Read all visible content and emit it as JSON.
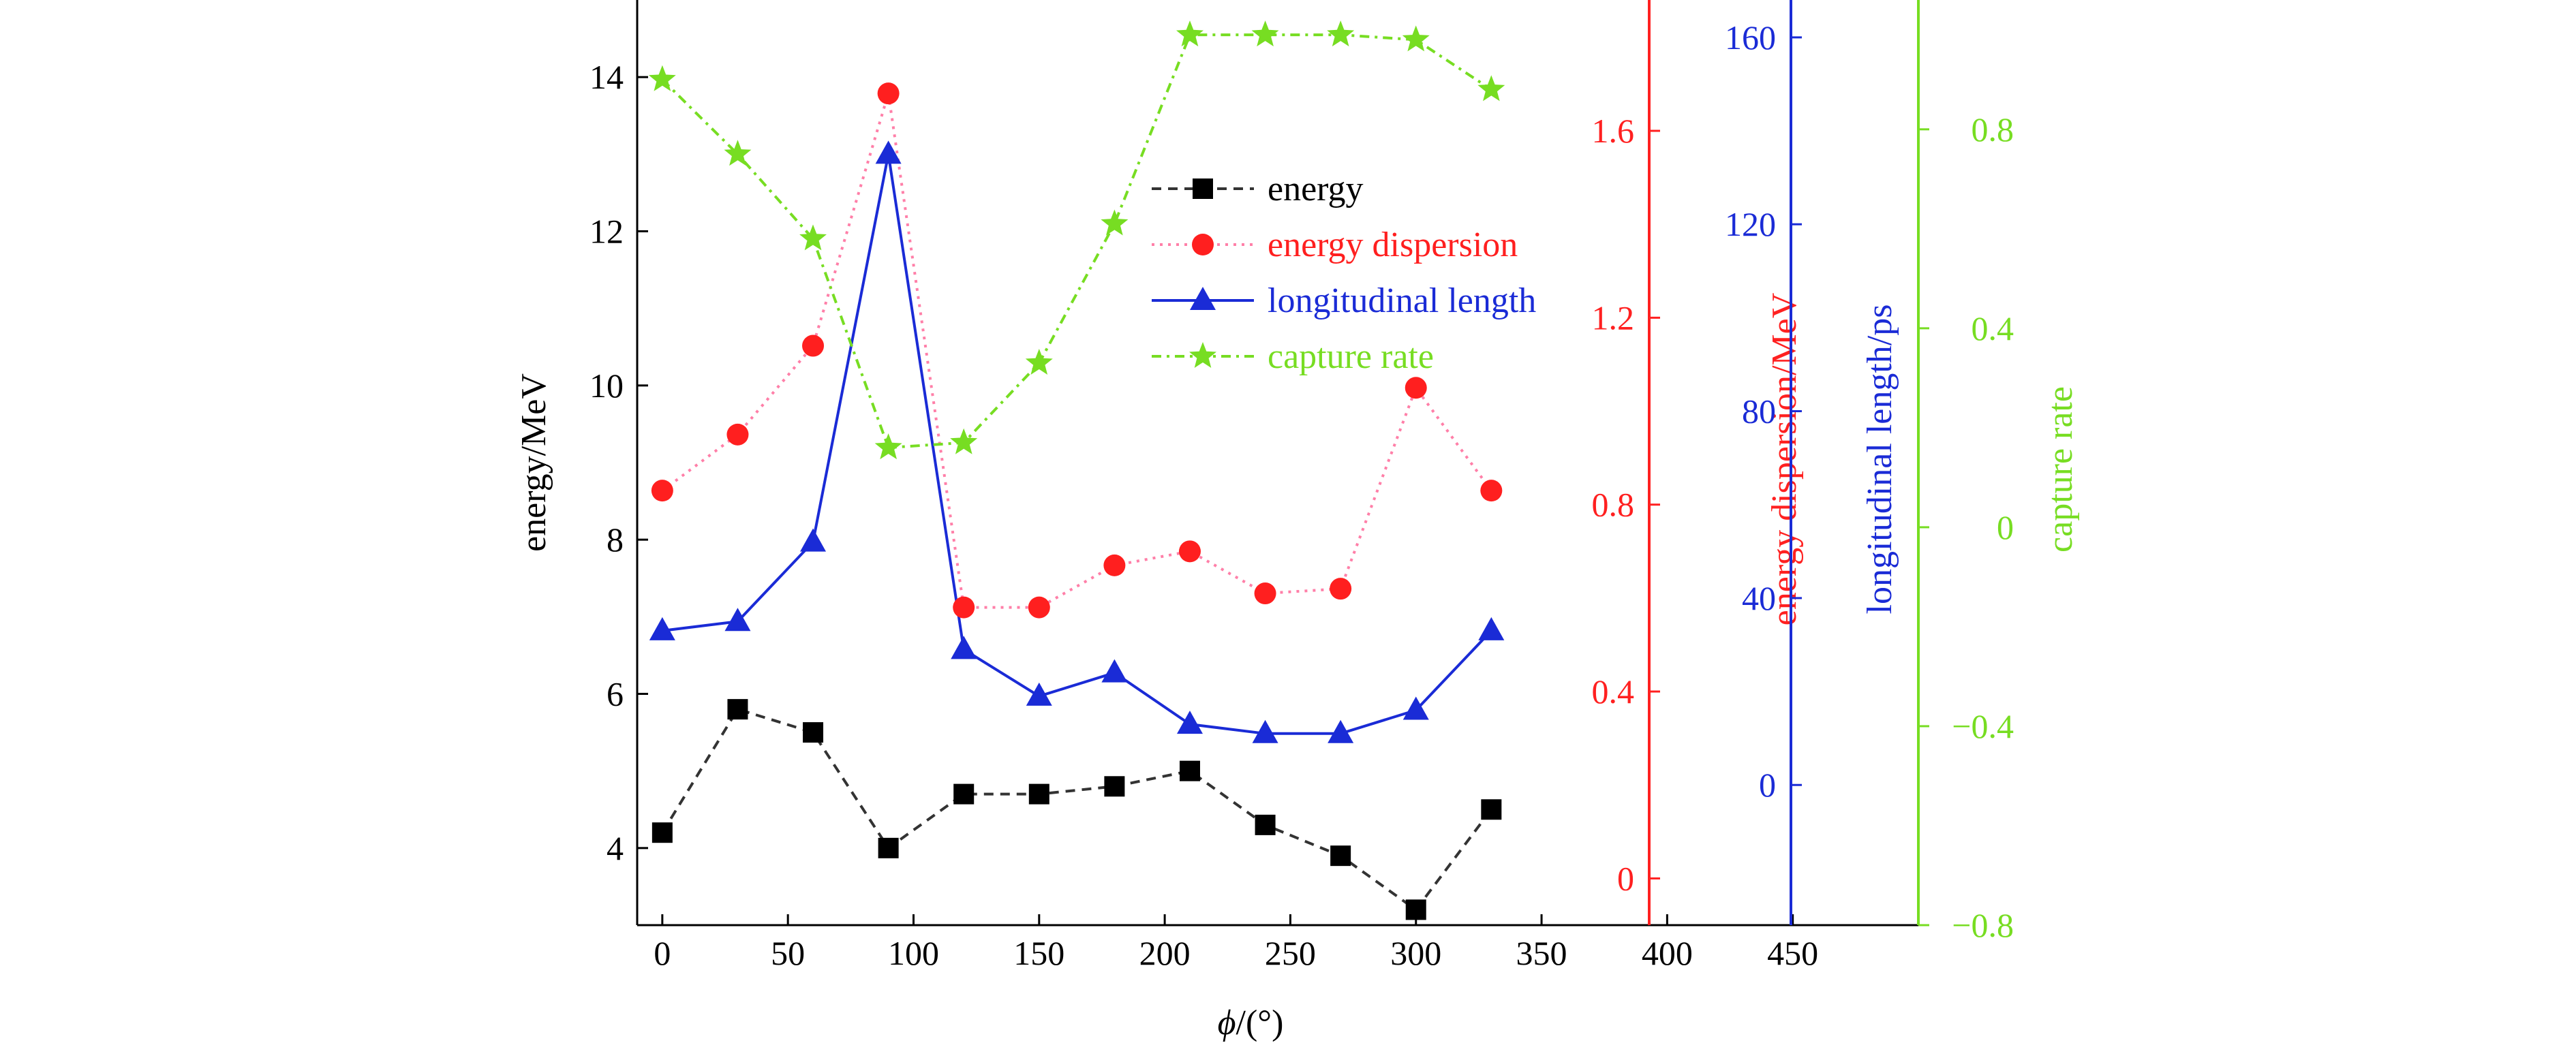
{
  "chart_data": {
    "type": "line",
    "xlabel": "ϕ/(°)",
    "x_axis": {
      "range": [
        -10,
        500
      ],
      "ticks": [
        0,
        50,
        100,
        150,
        200,
        250,
        300,
        350,
        400,
        450
      ]
    },
    "x": [
      0,
      30,
      60,
      90,
      120,
      150,
      180,
      210,
      240,
      270,
      300,
      330
    ],
    "axes": [
      {
        "id": "energy",
        "side": "left",
        "label": "energy/MeV",
        "range": [
          3,
          15
        ],
        "ticks": [
          4,
          6,
          8,
          10,
          12,
          14
        ],
        "tick_labels": [
          "4",
          "6",
          "8",
          "10",
          "12",
          "14"
        ],
        "color": "#000000"
      },
      {
        "id": "dispersion",
        "side": "right",
        "label": "energy dispersion/MeV",
        "range": [
          -0.1,
          1.88
        ],
        "ticks": [
          0,
          0.4,
          0.8,
          1.2,
          1.6
        ],
        "tick_labels": [
          "0",
          "0.4",
          "0.8",
          "1.2",
          "1.6"
        ],
        "color": "#ff2020"
      },
      {
        "id": "length",
        "side": "right",
        "label": "longitudinal length/ps",
        "range": [
          -30,
          168
        ],
        "ticks": [
          0,
          40,
          80,
          120,
          160
        ],
        "tick_labels": [
          "0",
          "40",
          "80",
          "120",
          "160"
        ],
        "color": "#1a2bd6"
      },
      {
        "id": "capture",
        "side": "right",
        "label": "capture rate",
        "range": [
          -0.8,
          1.06
        ],
        "ticks": [
          -0.8,
          -0.4,
          0,
          0.4,
          0.8
        ],
        "tick_labels": [
          "−0.8",
          "−0.4",
          "0",
          "0.4",
          "0.8"
        ],
        "color": "#77dd22"
      }
    ],
    "series": [
      {
        "name": "energy",
        "axis": "energy",
        "color": "#333333",
        "marker": "square",
        "dash": "14,10",
        "values": [
          4.2,
          5.8,
          5.5,
          4.0,
          4.7,
          4.7,
          4.8,
          5.0,
          4.3,
          3.9,
          3.2,
          4.5
        ]
      },
      {
        "name": "energy dispersion",
        "axis": "dispersion",
        "color": "#ff7fa8",
        "marker_color": "#ff1f1f",
        "marker": "circle",
        "dash": "4,8",
        "values": [
          0.83,
          0.95,
          1.14,
          1.68,
          0.58,
          0.58,
          0.67,
          0.7,
          0.61,
          0.62,
          1.05,
          0.83
        ]
      },
      {
        "name": "longitudinal length",
        "axis": "length",
        "color": "#1a2bd6",
        "marker": "triangle",
        "dash": "",
        "values": [
          33,
          35,
          52,
          135,
          29,
          19,
          24,
          13,
          11,
          11,
          16,
          33
        ]
      },
      {
        "name": "capture rate",
        "axis": "capture",
        "color": "#77dd22",
        "marker": "star",
        "dash": "14,8,4,8",
        "values": [
          0.9,
          0.75,
          0.58,
          0.16,
          0.17,
          0.33,
          0.61,
          0.99,
          0.99,
          0.99,
          0.98,
          0.88
        ]
      }
    ],
    "legend": {
      "position": "top-center"
    },
    "grid": false
  }
}
